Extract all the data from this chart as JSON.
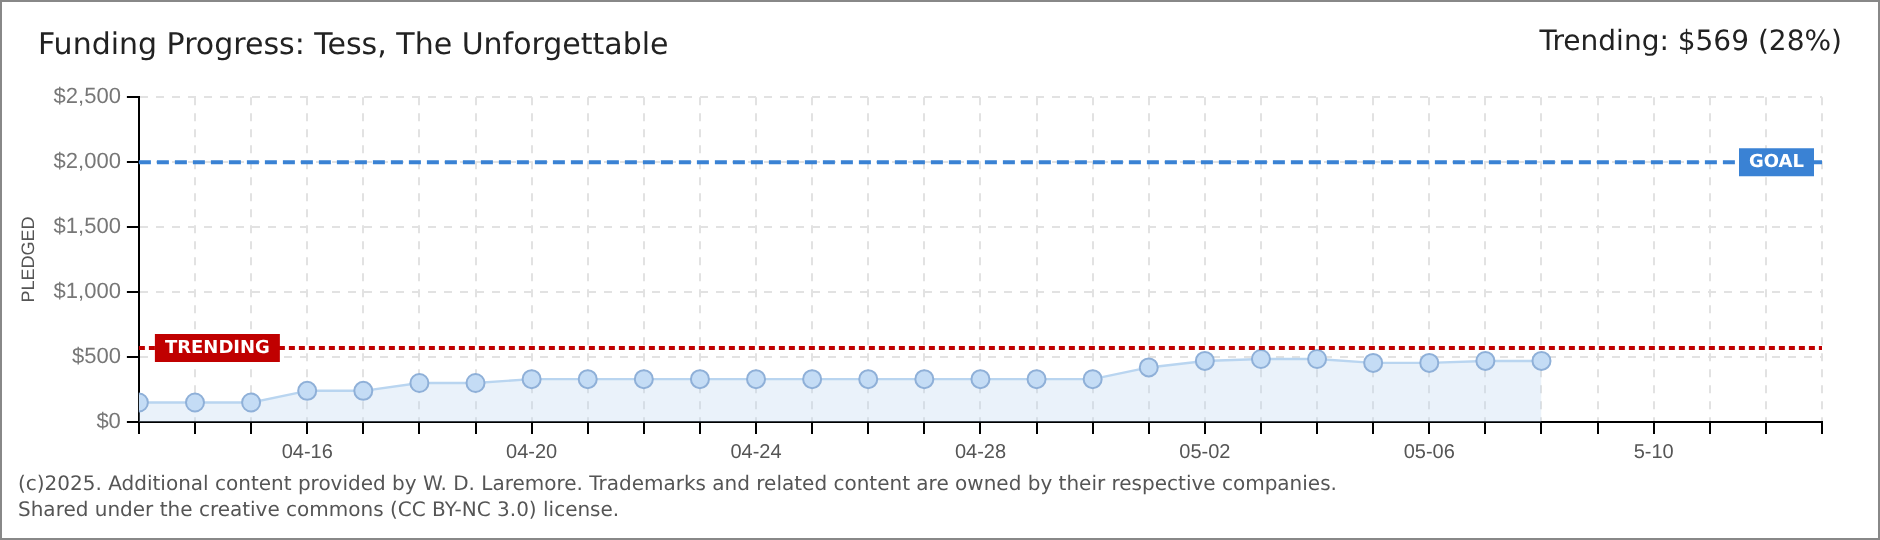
{
  "chart_data": {
    "type": "area",
    "title": "Funding Progress: Tess, The Unforgettable",
    "ylabel": "PLEDGED",
    "annotations": [
      "Trending: $569 (28%)",
      "(c)2025. Additional content provided by W. D. Laremore. Trademarks and related content are owned by their respective companies.",
      "Shared under the creative commons (CC BY-NC 3.0) license."
    ],
    "x": [
      "--04-13",
      "--04-14",
      "--04-15",
      "--04-16",
      "--04-17",
      "--04-18",
      "--04-19",
      "--04-20",
      "--04-21",
      "--04-22",
      "--04-23",
      "--04-24",
      "--04-25",
      "--04-26",
      "--04-27",
      "--04-28",
      "--04-29",
      "--04-30",
      "--05-01",
      "--05-02",
      "--05-03",
      "--05-04",
      "--05-05",
      "--05-06",
      "--05-07",
      "--05-08"
    ],
    "series": [
      {
        "color": "#b9d5f0",
        "values": [
          150,
          150,
          150,
          240,
          240,
          300,
          300,
          330,
          330,
          330,
          330,
          330,
          330,
          330,
          330,
          330,
          330,
          330,
          420,
          470,
          485,
          485,
          455,
          455,
          470,
          470
        ]
      }
    ],
    "xlim": [
      "--04-13",
      "--05-13"
    ],
    "xticks": [
      {
        "value": "--04-13",
        "label": null
      },
      {
        "value": "--04-14",
        "label": null
      },
      {
        "value": "--04-15",
        "label": null
      },
      {
        "value": "--04-16",
        "label": "04-16"
      },
      {
        "value": "--04-17",
        "label": null
      },
      {
        "value": "--04-18",
        "label": null
      },
      {
        "value": "--04-19",
        "label": null
      },
      {
        "value": "--04-20",
        "label": "04-20"
      },
      {
        "value": "--04-21",
        "label": null
      },
      {
        "value": "--04-22",
        "label": null
      },
      {
        "value": "--04-23",
        "label": null
      },
      {
        "value": "--04-24",
        "label": "04-24"
      },
      {
        "value": "--04-25",
        "label": null
      },
      {
        "value": "--04-26",
        "label": null
      },
      {
        "value": "--04-27",
        "label": null
      },
      {
        "value": "--04-28",
        "label": "04-28"
      },
      {
        "value": "--04-29",
        "label": null
      },
      {
        "value": "--04-30",
        "label": null
      },
      {
        "value": "--05-01",
        "label": null
      },
      {
        "value": "--05-02",
        "label": "05-02"
      },
      {
        "value": "--05-03",
        "label": null
      },
      {
        "value": "--05-04",
        "label": null
      },
      {
        "value": "--05-05",
        "label": null
      },
      {
        "value": "--05-06",
        "label": "05-06"
      },
      {
        "value": "--05-07",
        "label": null
      },
      {
        "value": "--05-08",
        "label": null
      },
      {
        "value": "--05-09",
        "label": null
      },
      {
        "value": "--05-10",
        "label": "5-10"
      },
      {
        "value": "--05-11",
        "label": null
      },
      {
        "value": "--05-12",
        "label": null
      },
      {
        "value": "--05-13",
        "label": null
      }
    ],
    "ylim": [
      0,
      2500
    ],
    "yticks": [
      {
        "value": 0,
        "label": "$0"
      },
      {
        "value": 500,
        "label": "$500"
      },
      {
        "value": 1000,
        "label": "$1,000"
      },
      {
        "value": 1500,
        "label": "$1,500"
      },
      {
        "value": 2000,
        "label": "$2,000"
      },
      {
        "value": 2500,
        "label": "$2,500"
      }
    ],
    "ref_lines": [
      {
        "axis": "y",
        "value": 2000,
        "label": "GOAL",
        "color": "#3a82d4",
        "line_style": "dashed"
      },
      {
        "axis": "y",
        "value": 569,
        "label": "TRENDING",
        "color": "#c00000",
        "line_style": "dotted"
      }
    ],
    "grid": true,
    "marker": "circle",
    "line_style": "solid",
    "legend": false
  }
}
